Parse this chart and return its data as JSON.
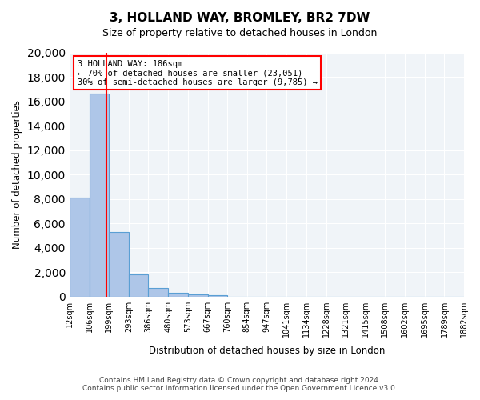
{
  "title1": "3, HOLLAND WAY, BROMLEY, BR2 7DW",
  "title2": "Size of property relative to detached houses in London",
  "xlabel": "Distribution of detached houses by size in London",
  "ylabel": "Number of detached properties",
  "property_size": 186,
  "property_label": "3 HOLLAND WAY: 186sqm",
  "annotation_line1": "← 70% of detached houses are smaller (23,051)",
  "annotation_line2": "30% of semi-detached houses are larger (9,785) →",
  "footer1": "Contains HM Land Registry data © Crown copyright and database right 2024.",
  "footer2": "Contains public sector information licensed under the Open Government Licence v3.0.",
  "bar_color": "#aec6e8",
  "bar_edge_color": "#5a9fd4",
  "vline_color": "red",
  "box_edge_color": "red",
  "background_color": "#f0f4f8",
  "bin_edges": [
    12,
    106,
    199,
    293,
    386,
    480,
    573,
    667,
    760,
    854,
    947,
    1041,
    1134,
    1228,
    1321,
    1415,
    1508,
    1602,
    1695,
    1789,
    1882
  ],
  "bin_labels": [
    "12sqm",
    "106sqm",
    "199sqm",
    "293sqm",
    "386sqm",
    "480sqm",
    "573sqm",
    "667sqm",
    "760sqm",
    "854sqm",
    "947sqm",
    "1041sqm",
    "1134sqm",
    "1228sqm",
    "1321sqm",
    "1415sqm",
    "1508sqm",
    "1602sqm",
    "1695sqm",
    "1789sqm",
    "1882sqm"
  ],
  "counts": [
    8100,
    16600,
    5300,
    1800,
    700,
    300,
    180,
    120,
    0,
    0,
    0,
    0,
    0,
    0,
    0,
    0,
    0,
    0,
    0,
    0
  ],
  "ylim": [
    0,
    20000
  ],
  "yticks": [
    0,
    2000,
    4000,
    6000,
    8000,
    10000,
    12000,
    14000,
    16000,
    18000,
    20000
  ]
}
